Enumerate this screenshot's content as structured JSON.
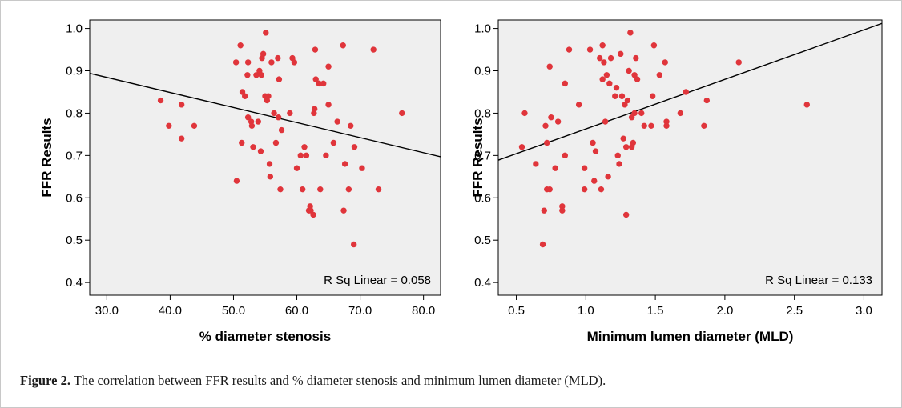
{
  "caption": {
    "label": "Figure 2.",
    "text": " The correlation between FFR results and % diameter stenosis and minimum lumen diameter (MLD)."
  },
  "chart_data": [
    {
      "type": "scatter",
      "xlabel": "% diameter stenosis",
      "ylabel": "FFR Results",
      "xlim": [
        27.3,
        82.7
      ],
      "ylim": [
        0.37,
        1.02
      ],
      "xticks": [
        "30.0",
        "40.0",
        "50.0",
        "60.0",
        "70.0",
        "80.0"
      ],
      "yticks": [
        "0.4",
        "0.5",
        "0.6",
        "0.7",
        "0.8",
        "0.9",
        "1.0"
      ],
      "annotation": "R Sq Linear = 0.058",
      "point_color": "#e0353b",
      "fit_line": {
        "x": [
          27.3,
          82.7
        ],
        "y": [
          0.894,
          0.697
        ]
      },
      "points": [
        [
          38.5,
          0.83
        ],
        [
          39.8,
          0.77
        ],
        [
          41.8,
          0.82
        ],
        [
          41.8,
          0.74
        ],
        [
          43.8,
          0.77
        ],
        [
          50.4,
          0.92
        ],
        [
          50.5,
          0.64
        ],
        [
          51.1,
          0.96
        ],
        [
          51.3,
          0.73
        ],
        [
          51.4,
          0.85
        ],
        [
          51.8,
          0.84
        ],
        [
          52.2,
          0.89
        ],
        [
          52.3,
          0.92
        ],
        [
          52.3,
          0.79
        ],
        [
          52.8,
          0.78
        ],
        [
          52.9,
          0.77
        ],
        [
          53.1,
          0.72
        ],
        [
          53.6,
          0.89
        ],
        [
          53.9,
          0.78
        ],
        [
          54.1,
          0.9
        ],
        [
          54.3,
          0.71
        ],
        [
          54.4,
          0.89
        ],
        [
          54.5,
          0.93
        ],
        [
          54.7,
          0.94
        ],
        [
          55.0,
          0.84
        ],
        [
          55.1,
          0.99
        ],
        [
          55.3,
          0.83
        ],
        [
          55.5,
          0.84
        ],
        [
          55.7,
          0.68
        ],
        [
          55.8,
          0.65
        ],
        [
          56.0,
          0.92
        ],
        [
          56.4,
          0.8
        ],
        [
          56.7,
          0.73
        ],
        [
          57.0,
          0.93
        ],
        [
          57.1,
          0.79
        ],
        [
          57.2,
          0.88
        ],
        [
          57.4,
          0.62
        ],
        [
          57.6,
          0.76
        ],
        [
          58.9,
          0.8
        ],
        [
          59.3,
          0.93
        ],
        [
          59.6,
          0.92
        ],
        [
          60.0,
          0.67
        ],
        [
          60.6,
          0.7
        ],
        [
          60.9,
          0.62
        ],
        [
          61.2,
          0.72
        ],
        [
          61.5,
          0.7
        ],
        [
          61.9,
          0.57
        ],
        [
          62.1,
          0.58
        ],
        [
          62.2,
          0.57
        ],
        [
          62.6,
          0.56
        ],
        [
          62.7,
          0.8
        ],
        [
          62.8,
          0.81
        ],
        [
          62.9,
          0.95
        ],
        [
          63.0,
          0.88
        ],
        [
          63.5,
          0.87
        ],
        [
          63.7,
          0.62
        ],
        [
          64.2,
          0.87
        ],
        [
          64.6,
          0.7
        ],
        [
          65.0,
          0.91
        ],
        [
          65.0,
          0.82
        ],
        [
          65.8,
          0.73
        ],
        [
          66.4,
          0.78
        ],
        [
          67.3,
          0.96
        ],
        [
          67.4,
          0.57
        ],
        [
          67.6,
          0.68
        ],
        [
          68.2,
          0.62
        ],
        [
          68.5,
          0.77
        ],
        [
          69.0,
          0.49
        ],
        [
          69.1,
          0.72
        ],
        [
          70.3,
          0.67
        ],
        [
          72.1,
          0.95
        ],
        [
          72.9,
          0.62
        ],
        [
          76.6,
          0.8
        ]
      ]
    },
    {
      "type": "scatter",
      "xlabel": "Minimum lumen diameter (MLD)",
      "ylabel": "FFR Results",
      "xlim": [
        0.37,
        3.13
      ],
      "ylim": [
        0.37,
        1.02
      ],
      "xticks": [
        "0.5",
        "1.0",
        "1.5",
        "2.0",
        "2.5",
        "3.0"
      ],
      "yticks": [
        "0.4",
        "0.5",
        "0.6",
        "0.7",
        "0.8",
        "0.9",
        "1.0"
      ],
      "annotation": "R Sq Linear = 0.133",
      "point_color": "#e0353b",
      "fit_line": {
        "x": [
          0.37,
          3.13
        ],
        "y": [
          0.689,
          1.012
        ]
      },
      "points": [
        [
          0.54,
          0.72
        ],
        [
          0.56,
          0.8
        ],
        [
          0.64,
          0.68
        ],
        [
          0.69,
          0.49
        ],
        [
          0.7,
          0.57
        ],
        [
          0.71,
          0.77
        ],
        [
          0.72,
          0.62
        ],
        [
          0.72,
          0.73
        ],
        [
          0.74,
          0.62
        ],
        [
          0.74,
          0.91
        ],
        [
          0.75,
          0.79
        ],
        [
          0.78,
          0.67
        ],
        [
          0.8,
          0.78
        ],
        [
          0.83,
          0.58
        ],
        [
          0.83,
          0.57
        ],
        [
          0.85,
          0.87
        ],
        [
          0.85,
          0.7
        ],
        [
          0.88,
          0.95
        ],
        [
          0.95,
          0.82
        ],
        [
          0.99,
          0.67
        ],
        [
          0.99,
          0.62
        ],
        [
          1.03,
          0.95
        ],
        [
          1.05,
          0.73
        ],
        [
          1.06,
          0.64
        ],
        [
          1.07,
          0.71
        ],
        [
          1.1,
          0.93
        ],
        [
          1.11,
          0.62
        ],
        [
          1.12,
          0.96
        ],
        [
          1.12,
          0.88
        ],
        [
          1.13,
          0.92
        ],
        [
          1.14,
          0.78
        ],
        [
          1.15,
          0.89
        ],
        [
          1.16,
          0.65
        ],
        [
          1.17,
          0.87
        ],
        [
          1.18,
          0.93
        ],
        [
          1.21,
          0.84
        ],
        [
          1.22,
          0.86
        ],
        [
          1.23,
          0.7
        ],
        [
          1.24,
          0.68
        ],
        [
          1.25,
          0.94
        ],
        [
          1.26,
          0.84
        ],
        [
          1.27,
          0.74
        ],
        [
          1.28,
          0.82
        ],
        [
          1.29,
          0.72
        ],
        [
          1.29,
          0.56
        ],
        [
          1.3,
          0.83
        ],
        [
          1.31,
          0.9
        ],
        [
          1.32,
          0.99
        ],
        [
          1.33,
          0.72
        ],
        [
          1.33,
          0.79
        ],
        [
          1.34,
          0.73
        ],
        [
          1.35,
          0.89
        ],
        [
          1.35,
          0.8
        ],
        [
          1.36,
          0.93
        ],
        [
          1.37,
          0.88
        ],
        [
          1.4,
          0.8
        ],
        [
          1.42,
          0.77
        ],
        [
          1.47,
          0.77
        ],
        [
          1.48,
          0.84
        ],
        [
          1.49,
          0.96
        ],
        [
          1.53,
          0.89
        ],
        [
          1.57,
          0.92
        ],
        [
          1.58,
          0.78
        ],
        [
          1.58,
          0.77
        ],
        [
          1.68,
          0.8
        ],
        [
          1.72,
          0.85
        ],
        [
          1.85,
          0.77
        ],
        [
          1.87,
          0.83
        ],
        [
          2.1,
          0.92
        ],
        [
          2.59,
          0.82
        ]
      ]
    }
  ]
}
